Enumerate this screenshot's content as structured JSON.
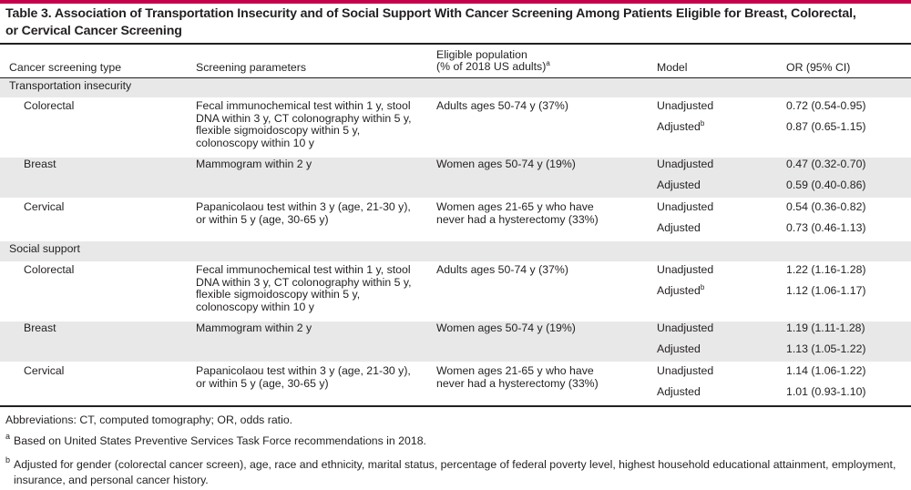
{
  "colors": {
    "accent": "#c8004b",
    "band": "#e8e8e9",
    "rule": "#231f20",
    "text": "#231f20"
  },
  "title_lines": [
    "Table 3. Association of Transportation Insecurity and of Social Support With Cancer Screening Among Patients Eligible for Breast, Colorectal,",
    "or Cervical Cancer Screening"
  ],
  "headers": {
    "type": "Cancer screening type",
    "params": "Screening parameters",
    "population_line1": "Eligible population",
    "population_line2": "(% of 2018 US adults)",
    "population_mark": "a",
    "model": "Model",
    "or": "OR (95% CI)"
  },
  "sections": [
    {
      "label": "Transportation insecurity",
      "groups": [
        {
          "type": "Colorectal",
          "params": [
            "Fecal immunochemical test within 1 y, stool",
            "DNA within 3 y, CT colonography within 5 y,",
            "flexible sigmoidoscopy within 5 y,",
            "colonoscopy within 10 y"
          ],
          "population": [
            "Adults ages 50-74 y (37%)"
          ],
          "rows": [
            {
              "model": "Unadjusted",
              "mark": "",
              "or": "0.72 (0.54-0.95)"
            },
            {
              "model": "Adjusted",
              "mark": "b",
              "or": "0.87 (0.65-1.15)"
            }
          ]
        },
        {
          "type": "Breast",
          "params": [
            "Mammogram within 2 y"
          ],
          "population": [
            "Women ages 50-74 y (19%)"
          ],
          "rows": [
            {
              "model": "Unadjusted",
              "mark": "",
              "or": "0.47 (0.32-0.70)"
            },
            {
              "model": "Adjusted",
              "mark": "",
              "or": "0.59 (0.40-0.86)"
            }
          ]
        },
        {
          "type": "Cervical",
          "params": [
            "Papanicolaou test within 3 y (age, 21-30 y),",
            "or within 5 y (age, 30-65 y)"
          ],
          "population": [
            "Women ages 21-65 y who have",
            "never had a hysterectomy (33%)"
          ],
          "rows": [
            {
              "model": "Unadjusted",
              "mark": "",
              "or": "0.54 (0.36-0.82)"
            },
            {
              "model": "Adjusted",
              "mark": "",
              "or": "0.73 (0.46-1.13)"
            }
          ]
        }
      ]
    },
    {
      "label": "Social support",
      "groups": [
        {
          "type": "Colorectal",
          "params": [
            "Fecal immunochemical test within 1 y, stool",
            "DNA within 3 y, CT colonography within 5 y,",
            "flexible sigmoidoscopy within 5 y,",
            "colonoscopy within 10 y"
          ],
          "population": [
            "Adults ages 50-74 y (37%)"
          ],
          "rows": [
            {
              "model": "Unadjusted",
              "mark": "",
              "or": "1.22 (1.16-1.28)"
            },
            {
              "model": "Adjusted",
              "mark": "b",
              "or": "1.12 (1.06-1.17)"
            }
          ]
        },
        {
          "type": "Breast",
          "params": [
            "Mammogram within 2 y"
          ],
          "population": [
            "Women ages 50-74 y (19%)"
          ],
          "rows": [
            {
              "model": "Unadjusted",
              "mark": "",
              "or": "1.19 (1.11-1.28)"
            },
            {
              "model": "Adjusted",
              "mark": "",
              "or": "1.13 (1.05-1.22)"
            }
          ]
        },
        {
          "type": "Cervical",
          "params": [
            "Papanicolaou test within 3 y (age, 21-30 y),",
            "or within 5 y (age, 30-65 y)"
          ],
          "population": [
            "Women ages 21-65 y who have",
            "never had a hysterectomy (33%)"
          ],
          "rows": [
            {
              "model": "Unadjusted",
              "mark": "",
              "or": "1.14 (1.06-1.22)"
            },
            {
              "model": "Adjusted",
              "mark": "",
              "or": "1.01 (0.93-1.10)"
            }
          ]
        }
      ]
    }
  ],
  "footnotes": {
    "abbreviations": "Abbreviations: CT, computed tomography; OR, odds ratio.",
    "a_mark": "a",
    "a_text": "Based on United States Preventive Services Task Force recommendations in 2018.",
    "b_mark": "b",
    "b_line1": "Adjusted for gender (colorectal cancer screen), age, race and ethnicity, marital status, percentage of federal poverty level, highest household educational attainment, employment,",
    "b_line2": "insurance, and personal cancer history."
  }
}
